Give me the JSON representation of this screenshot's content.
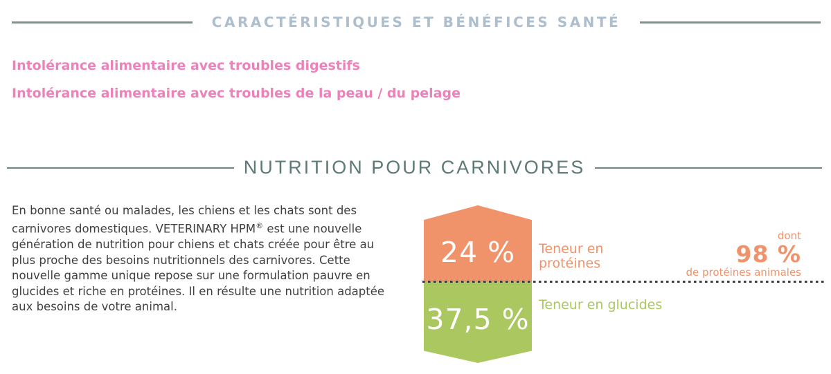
{
  "features": {
    "title": "CARACTÉRISTIQUES ET BÉNÉFICES SANTÉ",
    "title_color": "#aebecc",
    "rule_color": "#7d928f",
    "item_color": "#ec82ba",
    "items": [
      {
        "label": "Intolérance alimentaire avec troubles digestifs"
      },
      {
        "label": "Intolérance alimentaire avec troubles de la peau / du pelage"
      }
    ]
  },
  "nutrition": {
    "title": "NUTRITION POUR CARNIVORES",
    "title_color": "#5d7977",
    "rule_color": "#6e8683",
    "paragraph": {
      "part1": "En bonne santé ou malades, les chiens et les chats sont des carnivores domestiques. VETERINARY HPM",
      "registered": "®",
      "part2": " est une nouvelle génération de nutrition pour chiens et chats créée pour être au plus proche des besoins nutritionnels des carnivores. Cette nouvelle gamme unique repose sur une formulation pauvre en glucides et riche en protéines. Il en résulte une nutrition adaptée aux besoins de votre animal."
    },
    "infographic": {
      "protein_value": "24 %",
      "protein_label_line1": "Teneur en",
      "protein_label_line2": "protéines",
      "protein_color": "#f0926a",
      "carbs_value": "37,5 %",
      "carbs_label": "Teneur en glucides",
      "carbs_color": "#aac85f",
      "divider_color": "#3b3b3b",
      "animal_protein": {
        "prefix": "dont",
        "value": "98 %",
        "suffix": "de protéines animales"
      }
    }
  }
}
